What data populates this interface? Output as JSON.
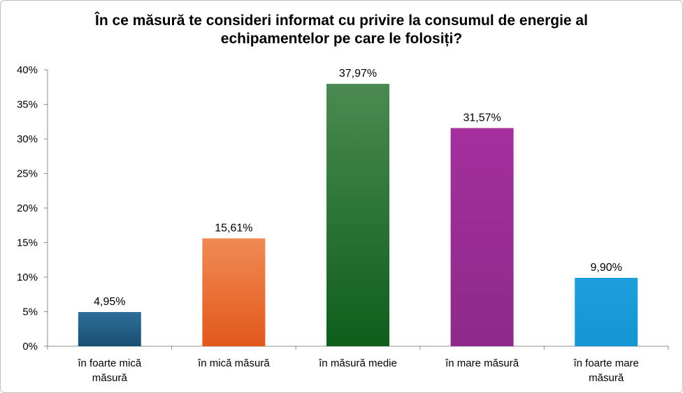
{
  "chart_data": {
    "type": "bar",
    "title": "În ce măsură te consideri informat cu privire la consumul de energie al echipamentelor pe care le folosiți?",
    "categories": [
      [
        "în foarte mică",
        "măsură"
      ],
      [
        "în mică măsură"
      ],
      [
        "în măsură medie"
      ],
      [
        "în mare măsură"
      ],
      [
        "în foarte mare",
        "măsură"
      ]
    ],
    "values": [
      4.95,
      15.61,
      37.97,
      31.57,
      9.9
    ],
    "data_labels": [
      "4,95%",
      "15,61%",
      "37,97%",
      "31,57%",
      "9,90%"
    ],
    "colors": [
      [
        "#2e6f99",
        "#1a4f73"
      ],
      [
        "#f08a55",
        "#e2581a"
      ],
      [
        "#4a8a52",
        "#0f5e1c"
      ],
      [
        "#a42f9d",
        "#8e2a8a"
      ],
      [
        "#1e9fdb",
        "#1596d3"
      ]
    ],
    "ylim": [
      0,
      40
    ],
    "ytick_step": 5,
    "ytick_labels": [
      "0%",
      "5%",
      "10%",
      "15%",
      "20%",
      "25%",
      "30%",
      "35%",
      "40%"
    ],
    "grid": false
  }
}
